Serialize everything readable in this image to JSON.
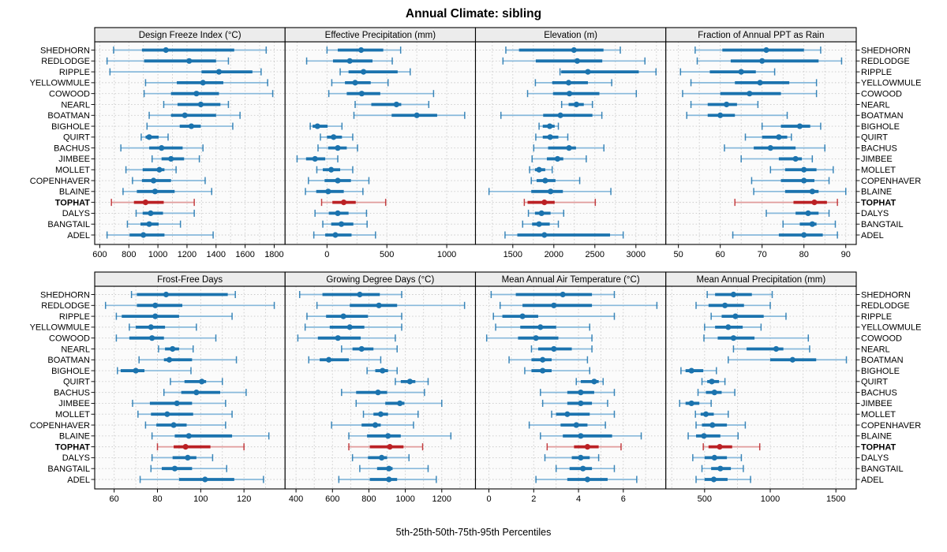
{
  "title": "Annual Climate: sibling",
  "caption": "5th-25th-50th-75th-95th Percentiles",
  "colors": {
    "series_dark": "#1b73ae",
    "series_light": "#88b9db",
    "highlight_dark": "#bb2125",
    "highlight_light": "#e09b9b",
    "strip_bg": "#ececec",
    "panel_bg": "#fbfbfb",
    "grid_line": "#c9c9c9",
    "border": "#000000"
  },
  "chart_data": {
    "type": "dot-interval-trellis",
    "percentiles": [
      5,
      25,
      50,
      75,
      95
    ],
    "grid": [
      2,
      4
    ],
    "legend_position": "none",
    "grid_on": true,
    "highlight_site": "TOPHAT",
    "sites": [
      "SHEDHORN",
      "REDLODGE",
      "RIPPLE",
      "YELLOWMULE",
      "COWOOD",
      "NEARL",
      "BOATMAN",
      "BIGHOLE",
      "QUIRT",
      "BACHUS",
      "JIMBEE",
      "MOLLET",
      "COPENHAVER",
      "BLAINE",
      "TOPHAT",
      "DALYS",
      "BANGTAIL",
      "ADEL"
    ],
    "panels": [
      {
        "title": "Design Freeze Index (°C)",
        "row": 0,
        "col": 0,
        "domain": [
          565,
          1875
        ],
        "ticks": [
          600,
          800,
          1000,
          1200,
          1400,
          1600,
          1800
        ],
        "values": [
          [
            695,
            890,
            1055,
            1525,
            1745
          ],
          [
            650,
            905,
            1215,
            1400,
            1485
          ],
          [
            670,
            1300,
            1420,
            1650,
            1710
          ],
          [
            915,
            1130,
            1310,
            1450,
            1755
          ],
          [
            905,
            1090,
            1265,
            1420,
            1790
          ],
          [
            1040,
            1135,
            1295,
            1430,
            1485
          ],
          [
            940,
            1090,
            1185,
            1400,
            1565
          ],
          [
            925,
            1150,
            1230,
            1295,
            1515
          ],
          [
            885,
            915,
            940,
            1005,
            1070
          ],
          [
            745,
            940,
            1025,
            1170,
            1310
          ],
          [
            960,
            1025,
            1090,
            1180,
            1285
          ],
          [
            780,
            895,
            1010,
            1045,
            1125
          ],
          [
            825,
            890,
            970,
            1090,
            1325
          ],
          [
            760,
            855,
            980,
            1115,
            1370
          ],
          [
            680,
            835,
            915,
            1040,
            1250
          ],
          [
            850,
            895,
            950,
            1035,
            1250
          ],
          [
            790,
            880,
            940,
            1005,
            1155
          ],
          [
            650,
            805,
            900,
            1045,
            1380
          ]
        ]
      },
      {
        "title": "Effective Precipitation (mm)",
        "row": 0,
        "col": 1,
        "domain": [
          -350,
          1240
        ],
        "ticks": [
          0,
          500,
          1000
        ],
        "values": [
          [
            0,
            90,
            285,
            470,
            615
          ],
          [
            -170,
            50,
            190,
            380,
            545
          ],
          [
            110,
            180,
            305,
            590,
            695
          ],
          [
            40,
            150,
            235,
            365,
            510
          ],
          [
            15,
            165,
            290,
            445,
            890
          ],
          [
            235,
            370,
            580,
            620,
            850
          ],
          [
            225,
            540,
            750,
            920,
            1150
          ],
          [
            -140,
            -120,
            -80,
            5,
            125
          ],
          [
            -55,
            0,
            55,
            125,
            215
          ],
          [
            -75,
            10,
            90,
            165,
            255
          ],
          [
            -250,
            -175,
            -100,
            -15,
            90
          ],
          [
            -85,
            -35,
            35,
            110,
            215
          ],
          [
            -155,
            -20,
            90,
            200,
            350
          ],
          [
            -180,
            -90,
            10,
            140,
            300
          ],
          [
            -45,
            45,
            140,
            240,
            490
          ],
          [
            -100,
            15,
            90,
            180,
            330
          ],
          [
            -35,
            35,
            120,
            220,
            335
          ],
          [
            -110,
            -15,
            70,
            205,
            405
          ]
        ]
      },
      {
        "title": "Elevation (m)",
        "row": 0,
        "col": 2,
        "domain": [
          1045,
          3365
        ],
        "ticks": [
          1500,
          2000,
          2500,
          3000
        ],
        "values": [
          [
            1415,
            1575,
            2245,
            2605,
            2810
          ],
          [
            1380,
            1780,
            2285,
            2590,
            3110
          ],
          [
            2075,
            2090,
            2415,
            3035,
            3245
          ],
          [
            1775,
            1980,
            2180,
            2415,
            2705
          ],
          [
            1680,
            1990,
            2190,
            2555,
            3005
          ],
          [
            2095,
            2180,
            2275,
            2365,
            2470
          ],
          [
            1355,
            1870,
            2080,
            2470,
            2585
          ],
          [
            1820,
            1865,
            1950,
            2010,
            2055
          ],
          [
            1780,
            1865,
            1955,
            2055,
            2170
          ],
          [
            1755,
            1930,
            2185,
            2270,
            2610
          ],
          [
            1735,
            1915,
            2045,
            2115,
            2395
          ],
          [
            1705,
            1770,
            1820,
            1895,
            1980
          ],
          [
            1725,
            1790,
            1895,
            2020,
            2315
          ],
          [
            1210,
            1725,
            1960,
            2110,
            2695
          ],
          [
            1640,
            1680,
            1885,
            2010,
            2505
          ],
          [
            1690,
            1770,
            1850,
            1960,
            2120
          ],
          [
            1620,
            1735,
            1820,
            1950,
            2055
          ],
          [
            1405,
            1555,
            1885,
            2685,
            2845
          ]
        ]
      },
      {
        "title": "Fraction of Annual PPT as Rain",
        "row": 0,
        "col": 3,
        "domain": [
          47,
          92.5
        ],
        "ticks": [
          50,
          60,
          70,
          80,
          90
        ],
        "values": [
          [
            54,
            60.5,
            71,
            80,
            84
          ],
          [
            54.5,
            62.5,
            70,
            83.5,
            89
          ],
          [
            50.5,
            57.5,
            65,
            68.5,
            73
          ],
          [
            53,
            63.5,
            69.5,
            76.5,
            83
          ],
          [
            51,
            60,
            67,
            74.5,
            83
          ],
          [
            53,
            57,
            61.5,
            64,
            69
          ],
          [
            52,
            57,
            60,
            63.5,
            76
          ],
          [
            70,
            74.5,
            79,
            81.5,
            84
          ],
          [
            66,
            70,
            74,
            76,
            77
          ],
          [
            61,
            68,
            72,
            78,
            85
          ],
          [
            65,
            74,
            78,
            79.5,
            82
          ],
          [
            72,
            75.5,
            80,
            83,
            87
          ],
          [
            67.5,
            74.5,
            80,
            82.5,
            86
          ],
          [
            68,
            75.5,
            82,
            83.5,
            90
          ],
          [
            63.5,
            77.5,
            82.5,
            85.5,
            88
          ],
          [
            71,
            78,
            81,
            83.5,
            86
          ],
          [
            75,
            79,
            82,
            83,
            87.5
          ],
          [
            63,
            74,
            80,
            84.5,
            88
          ]
        ]
      },
      {
        "title": "Frost-Free Days",
        "row": 1,
        "col": 0,
        "domain": [
          51,
          139
        ],
        "ticks": [
          60,
          80,
          100,
          120
        ],
        "values": [
          [
            68,
            70.5,
            84,
            112.5,
            116
          ],
          [
            56,
            70.5,
            79,
            91.5,
            134
          ],
          [
            61,
            63.5,
            79,
            90,
            114.5
          ],
          [
            67,
            70,
            77,
            83.5,
            98
          ],
          [
            61,
            67,
            77.5,
            83,
            107
          ],
          [
            80.5,
            83.5,
            87,
            90,
            96.5
          ],
          [
            71.5,
            83,
            85.5,
            96,
            116.5
          ],
          [
            61.5,
            63,
            70,
            74,
            95.5
          ],
          [
            86,
            92.5,
            100.5,
            102.5,
            110
          ],
          [
            83,
            91,
            98,
            109,
            121
          ],
          [
            68.5,
            76.5,
            89,
            96,
            111.5
          ],
          [
            71,
            77,
            84.5,
            96.5,
            114.5
          ],
          [
            74.5,
            79.5,
            87.5,
            93.5,
            111.5
          ],
          [
            77.5,
            88,
            94.5,
            114.5,
            131.5
          ],
          [
            80,
            87.5,
            93,
            104.5,
            120
          ],
          [
            77.5,
            87,
            94,
            98,
            105.5
          ],
          [
            77,
            82,
            88,
            96,
            112
          ],
          [
            72,
            90,
            102,
            115.5,
            129
          ]
        ]
      },
      {
        "title": "Growing Degree Days (°C)",
        "row": 1,
        "col": 1,
        "domain": [
          340,
          1385
        ],
        "ticks": [
          400,
          600,
          800,
          1000,
          1200
        ],
        "values": [
          [
            420,
            545,
            750,
            860,
            980
          ],
          [
            515,
            695,
            855,
            955,
            1325
          ],
          [
            460,
            565,
            660,
            795,
            980
          ],
          [
            450,
            585,
            695,
            775,
            980
          ],
          [
            410,
            520,
            630,
            755,
            945
          ],
          [
            650,
            710,
            760,
            825,
            955
          ],
          [
            470,
            530,
            580,
            690,
            865
          ],
          [
            790,
            835,
            875,
            905,
            955
          ],
          [
            945,
            975,
            1025,
            1055,
            1125
          ],
          [
            650,
            730,
            850,
            900,
            1105
          ],
          [
            730,
            890,
            970,
            995,
            1200
          ],
          [
            770,
            825,
            865,
            905,
            1070
          ],
          [
            595,
            760,
            835,
            865,
            1045
          ],
          [
            690,
            790,
            905,
            975,
            1250
          ],
          [
            690,
            805,
            915,
            990,
            1095
          ],
          [
            710,
            795,
            870,
            900,
            1020
          ],
          [
            750,
            845,
            910,
            930,
            1125
          ],
          [
            635,
            805,
            910,
            955,
            1170
          ]
        ]
      },
      {
        "title": "Mean Annual Air Temperature (°C)",
        "row": 1,
        "col": 2,
        "domain": [
          -0.6,
          7.9
        ],
        "ticks": [
          0,
          2,
          4,
          6
        ],
        "values": [
          [
            0.1,
            1.2,
            3.3,
            4.6,
            5.6
          ],
          [
            0.5,
            1.5,
            2.9,
            4.6,
            7.5
          ],
          [
            0.2,
            0.6,
            1.5,
            2.2,
            5.6
          ],
          [
            0.3,
            1.4,
            2.3,
            3.0,
            4.5
          ],
          [
            -0.1,
            1.3,
            2.1,
            3.1,
            4.6
          ],
          [
            1.9,
            2.2,
            2.9,
            3.7,
            4.6
          ],
          [
            0.9,
            1.9,
            2.4,
            2.8,
            4.4
          ],
          [
            1.6,
            1.9,
            2.4,
            2.8,
            4.5
          ],
          [
            3.9,
            4.1,
            4.7,
            4.9,
            5.1
          ],
          [
            2.3,
            3.5,
            4.1,
            4.7,
            5.6
          ],
          [
            2.4,
            3.5,
            4.1,
            4.6,
            5.3
          ],
          [
            2.8,
            3.0,
            3.5,
            4.5,
            5.6
          ],
          [
            1.8,
            3.2,
            3.9,
            4.4,
            5.2
          ],
          [
            2.3,
            3.3,
            4.1,
            5.5,
            6.8
          ],
          [
            2.6,
            3.8,
            4.4,
            4.9,
            5.9
          ],
          [
            2.5,
            3.7,
            4.1,
            4.5,
            4.9
          ],
          [
            3.0,
            3.6,
            4.2,
            4.6,
            5.6
          ],
          [
            2.1,
            3.5,
            4.4,
            5.3,
            6.6
          ]
        ]
      },
      {
        "title": "Mean Annual Precipitation (mm)",
        "row": 1,
        "col": 3,
        "domain": [
          205,
          1655
        ],
        "ticks": [
          500,
          1000,
          1500
        ],
        "values": [
          [
            520,
            580,
            720,
            860,
            1015
          ],
          [
            435,
            530,
            655,
            800,
            1000
          ],
          [
            550,
            630,
            735,
            950,
            1120
          ],
          [
            500,
            580,
            680,
            790,
            930
          ],
          [
            495,
            600,
            720,
            880,
            1290
          ],
          [
            720,
            820,
            1045,
            1100,
            1300
          ],
          [
            680,
            1000,
            1170,
            1350,
            1580
          ],
          [
            320,
            355,
            400,
            490,
            590
          ],
          [
            480,
            520,
            555,
            610,
            655
          ],
          [
            450,
            510,
            575,
            630,
            730
          ],
          [
            310,
            355,
            400,
            460,
            550
          ],
          [
            430,
            470,
            510,
            570,
            680
          ],
          [
            435,
            480,
            560,
            670,
            810
          ],
          [
            375,
            435,
            495,
            620,
            755
          ],
          [
            490,
            530,
            615,
            710,
            920
          ],
          [
            410,
            500,
            575,
            670,
            780
          ],
          [
            480,
            550,
            620,
            700,
            795
          ],
          [
            435,
            500,
            570,
            675,
            850
          ]
        ]
      }
    ]
  }
}
